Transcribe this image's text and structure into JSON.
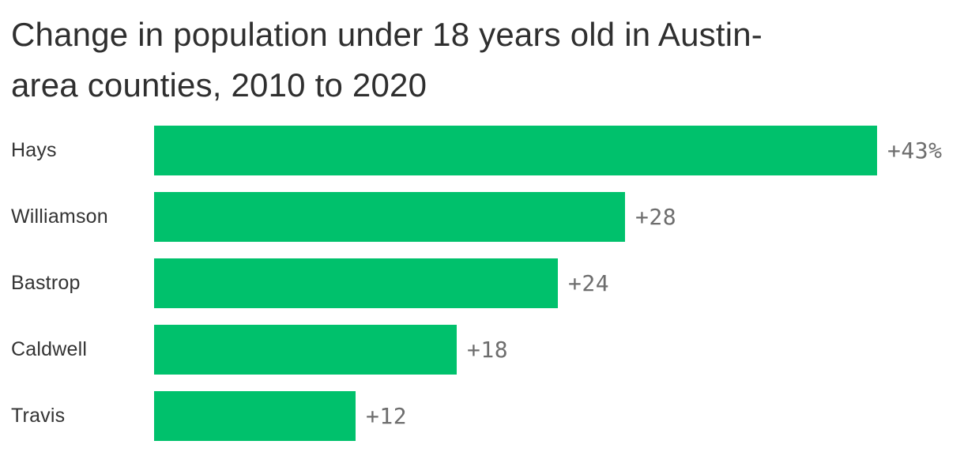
{
  "title": {
    "text": "Change in population under 18 years old in Austin-area counties, 2010 to 2020",
    "lines": [
      "Change in population under 18 years old in Austin-",
      "area counties, 2010 to 2020"
    ]
  },
  "chart_data": {
    "type": "bar",
    "orientation": "horizontal",
    "title": "Change in population under 18 years old in Austin-area counties, 2010 to 2020",
    "categories": [
      "Hays",
      "Williamson",
      "Bastrop",
      "Caldwell",
      "Travis"
    ],
    "values": [
      43,
      28,
      24,
      18,
      12
    ],
    "display_values": [
      "+43%",
      "+28",
      "+24",
      "+18",
      "+12"
    ],
    "unit": "percent change",
    "xlabel": "",
    "ylabel": "",
    "xlim": [
      0,
      43
    ],
    "grid": false,
    "legend": false,
    "colors": {
      "bar": "#00c16c",
      "title_text": "#2f2f2f",
      "category_label": "#333333",
      "value_label": "#6d6d6d",
      "background": "#ffffff"
    }
  }
}
